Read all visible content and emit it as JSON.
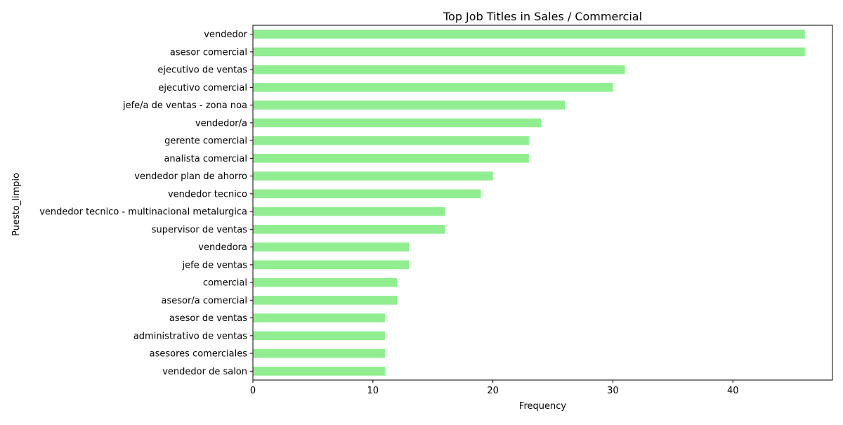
{
  "chart_data": {
    "type": "bar",
    "orientation": "horizontal",
    "title": "Top Job Titles in Sales / Commercial",
    "xlabel": "Frequency",
    "ylabel": "Puesto_limpio",
    "categories": [
      "vendedor",
      "asesor comercial",
      "ejecutivo de ventas",
      "ejecutivo comercial",
      "jefe/a de ventas - zona noa",
      "vendedor/a",
      "gerente comercial",
      "analista comercial",
      "vendedor plan de ahorro",
      "vendedor tecnico",
      "vendedor tecnico - multinacional metalurgica",
      "supervisor de ventas",
      "vendedora",
      "jefe de ventas",
      "comercial",
      "asesor/a comercial",
      "asesor de ventas",
      "administrativo de ventas",
      "asesores comerciales",
      "vendedor de salon"
    ],
    "values": [
      46,
      46,
      31,
      30,
      26,
      24,
      23,
      23,
      20,
      19,
      16,
      16,
      13,
      13,
      12,
      12,
      11,
      11,
      11,
      11
    ],
    "xlim": [
      0,
      48.3
    ],
    "xticks": [
      0,
      10,
      20,
      30,
      40
    ],
    "bar_color": "#90ee90",
    "grid": false,
    "legend": "none"
  }
}
